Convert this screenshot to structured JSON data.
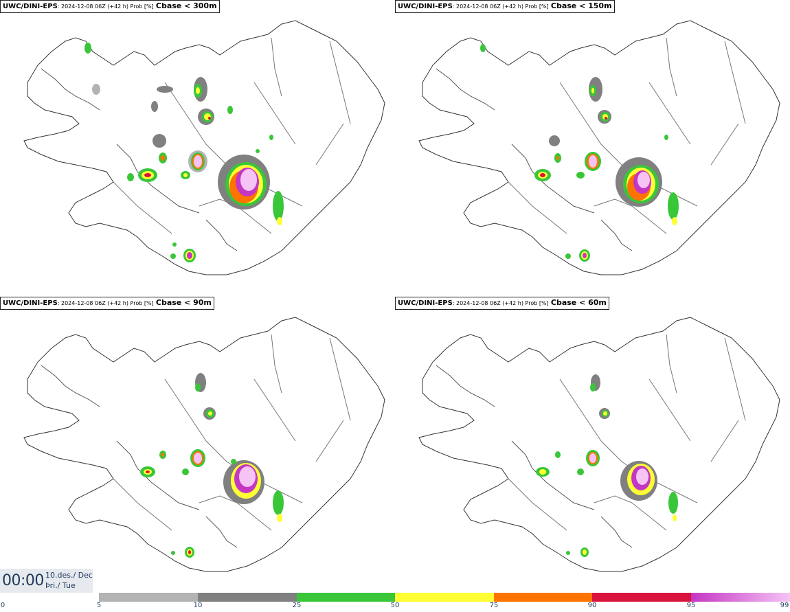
{
  "panels": [
    {
      "model": "UWC/DINI-EPS",
      "meta": ": 2024-12-08 06Z (+42 h) Prob [%]",
      "param": "Cbase < 300m"
    },
    {
      "model": "UWC/DINI-EPS",
      "meta": ": 2024-12-08 06Z (+42 h) Prob [%]",
      "param": "Cbase < 150m"
    },
    {
      "model": "UWC/DINI-EPS",
      "meta": ": 2024-12-08 06Z (+42 h) Prob [%]",
      "param": "Cbase < 90m"
    },
    {
      "model": "UWC/DINI-EPS",
      "meta": ": 2024-12-08 06Z (+42 h) Prob [%]",
      "param": "Cbase < 60m"
    }
  ],
  "valid_time": {
    "time": "00:00",
    "date_line1": "10.des./ Dec",
    "date_line2": "Þri./ Tue"
  },
  "colorbar": {
    "ticks": [
      "0",
      "5",
      "10",
      "25",
      "50",
      "75",
      "90",
      "95",
      "99"
    ],
    "colors": [
      "#b3b3b3",
      "#808080",
      "#39c639",
      "#ffff33",
      "#ff7400",
      "#d9143c",
      "#c436c4",
      "#f5c4f5"
    ]
  }
}
